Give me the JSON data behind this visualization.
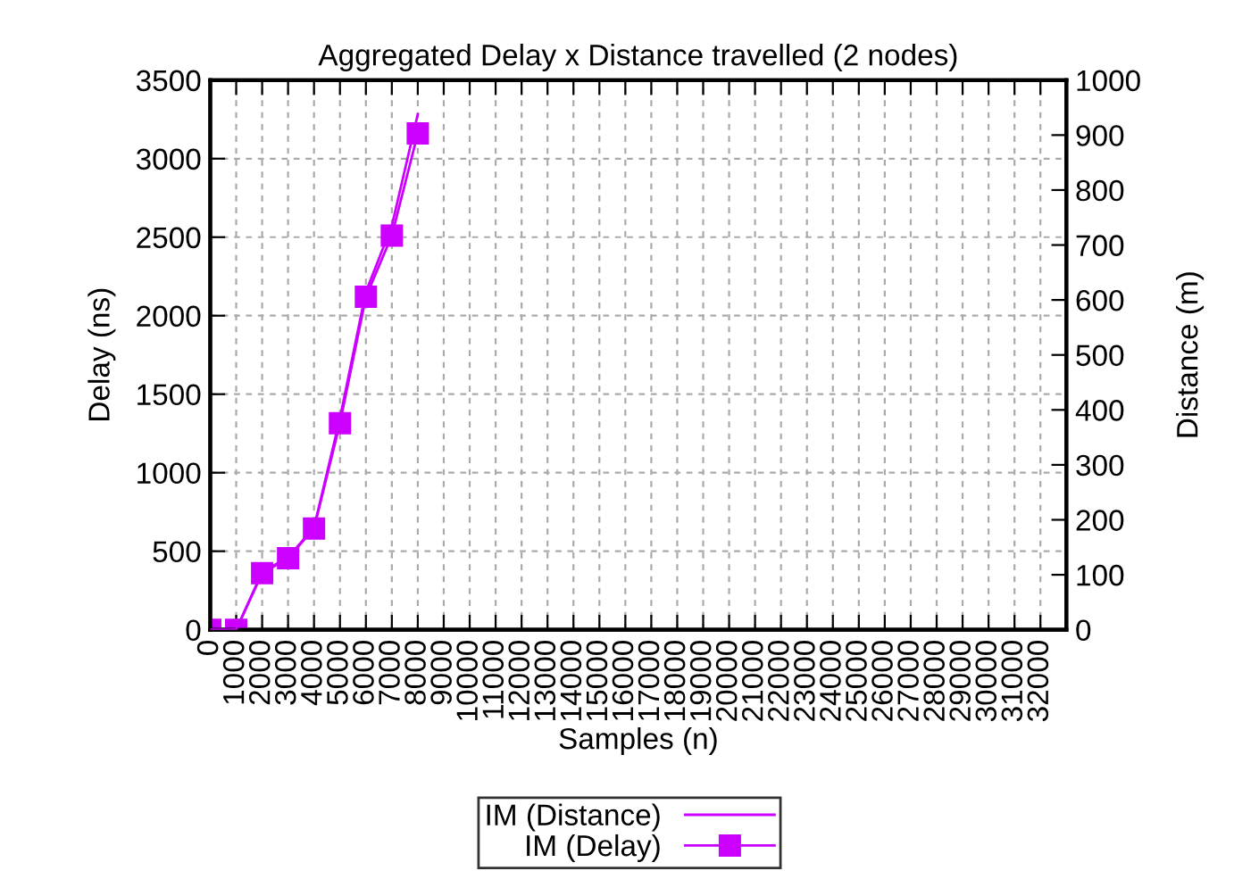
{
  "chart_data": {
    "type": "line",
    "title": "Aggregated Delay x Distance travelled (2 nodes)",
    "xlabel": "Samples (n)",
    "ylabel": "Delay (ns)",
    "y2label": "Distance (m)",
    "x": [
      0,
      1000,
      2000,
      3000,
      4000,
      5000,
      6000,
      7000,
      8000
    ],
    "series": [
      {
        "name": "IM (Distance)",
        "color": "#cc00ff",
        "axis": "y2",
        "marker": "none",
        "values": [
          0,
          0,
          105,
          132,
          186,
          385,
          615,
          735,
          938
        ]
      },
      {
        "name": "IM (Delay)",
        "color": "#cc00ff",
        "marker": "square",
        "values": [
          0,
          0,
          360,
          455,
          645,
          1315,
          2120,
          2510,
          3160
        ]
      }
    ],
    "xlim": [
      0,
      33000
    ],
    "xticks": [
      0,
      1000,
      2000,
      3000,
      4000,
      5000,
      6000,
      7000,
      8000,
      9000,
      10000,
      11000,
      12000,
      13000,
      14000,
      15000,
      16000,
      17000,
      18000,
      19000,
      20000,
      21000,
      22000,
      23000,
      24000,
      25000,
      26000,
      27000,
      28000,
      29000,
      30000,
      31000,
      32000
    ],
    "ylim": [
      0,
      3500
    ],
    "yticks": [
      0,
      500,
      1000,
      1500,
      2000,
      2500,
      3000,
      3500
    ],
    "y2lim": [
      0,
      1000
    ],
    "y2ticks": [
      0,
      100,
      200,
      300,
      400,
      500,
      600,
      700,
      800,
      900,
      1000
    ],
    "grid": true,
    "legend": "bottom",
    "line_style": "solid"
  }
}
